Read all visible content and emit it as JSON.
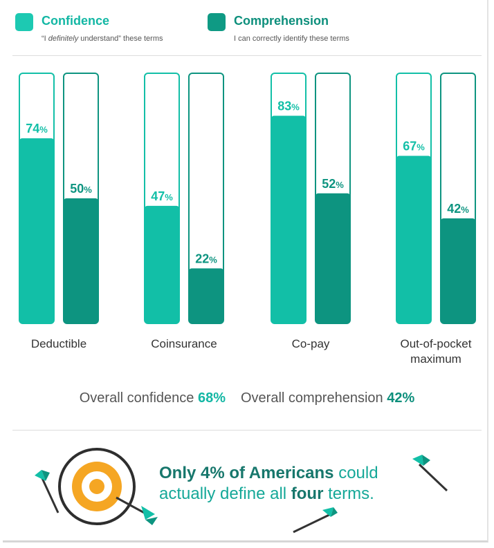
{
  "legend": {
    "confidence": {
      "title": "Confidence",
      "subtitle_pre": "“I ",
      "subtitle_em": "definitely",
      "subtitle_post": " understand” these terms",
      "color": "#1dc9b2"
    },
    "comprehension": {
      "title": "Comprehension",
      "subtitle": "I can correctly identify these terms",
      "color": "#0f9a84"
    }
  },
  "chart_data": {
    "type": "bar",
    "categories": [
      "Deductible",
      "Coinsurance",
      "Co-pay",
      "Out-of-pocket maximum"
    ],
    "category_lines": [
      [
        "Deductible"
      ],
      [
        "Coinsurance"
      ],
      [
        "Co-pay"
      ],
      [
        "Out-of-pocket",
        "maximum"
      ]
    ],
    "ylim": [
      0,
      100
    ],
    "series": [
      {
        "name": "Confidence",
        "values": [
          74,
          47,
          83,
          67
        ],
        "color": "#12bfa7"
      },
      {
        "name": "Comprehension",
        "values": [
          50,
          22,
          52,
          42
        ],
        "color": "#0d9480"
      }
    ],
    "value_suffix": "%"
  },
  "overall": {
    "confidence_label": "Overall confidence ",
    "confidence_value": "68%",
    "comprehension_label": "Overall comprehension ",
    "comprehension_value": "42%"
  },
  "callout": {
    "part1": "Only 4% of Americans",
    "part2": " could actually define all ",
    "part3": "four",
    "part4": " terms."
  },
  "icons": [
    "target-icon",
    "arrow-icon"
  ]
}
